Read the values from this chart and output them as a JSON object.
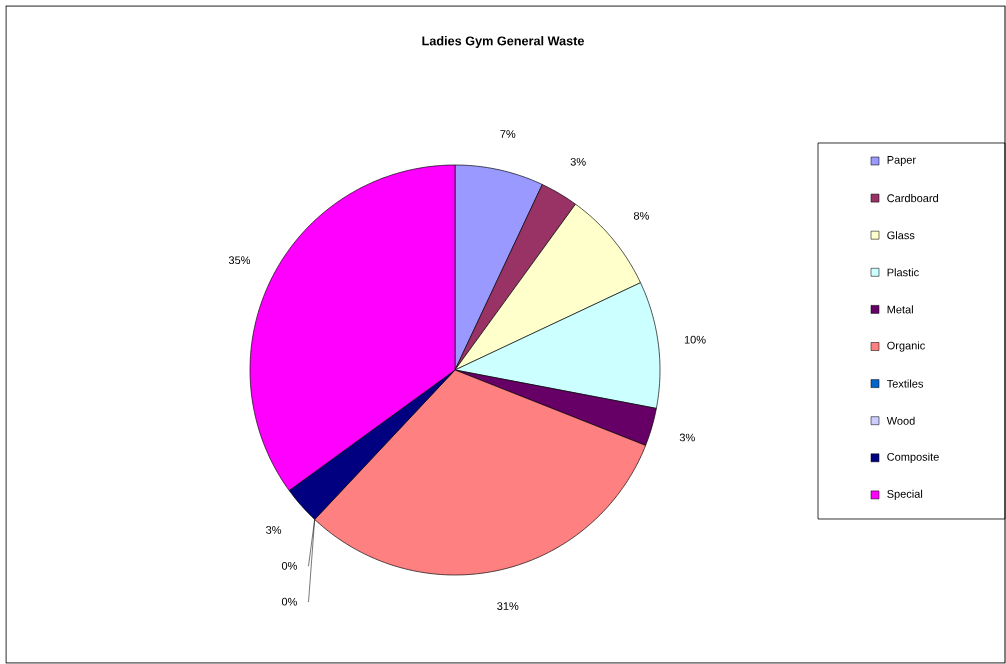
{
  "chart_data": {
    "type": "pie",
    "title": "Ladies Gym General Waste",
    "categories": [
      "Paper",
      "Cardboard",
      "Glass",
      "Plastic",
      "Metal",
      "Organic",
      "Textiles",
      "Wood",
      "Composite",
      "Special"
    ],
    "values": [
      7,
      3,
      8,
      10,
      3,
      31,
      0,
      0,
      3,
      35
    ],
    "colors": [
      "#9999ff",
      "#993366",
      "#ffffcc",
      "#ccffff",
      "#660066",
      "#ff8080",
      "#0066cc",
      "#ccccff",
      "#000080",
      "#ff00ff"
    ],
    "value_labels": [
      "7%",
      "3%",
      "8%",
      "10%",
      "3%",
      "31%",
      "0%",
      "0%",
      "3%",
      "35%"
    ],
    "legend": "right"
  }
}
